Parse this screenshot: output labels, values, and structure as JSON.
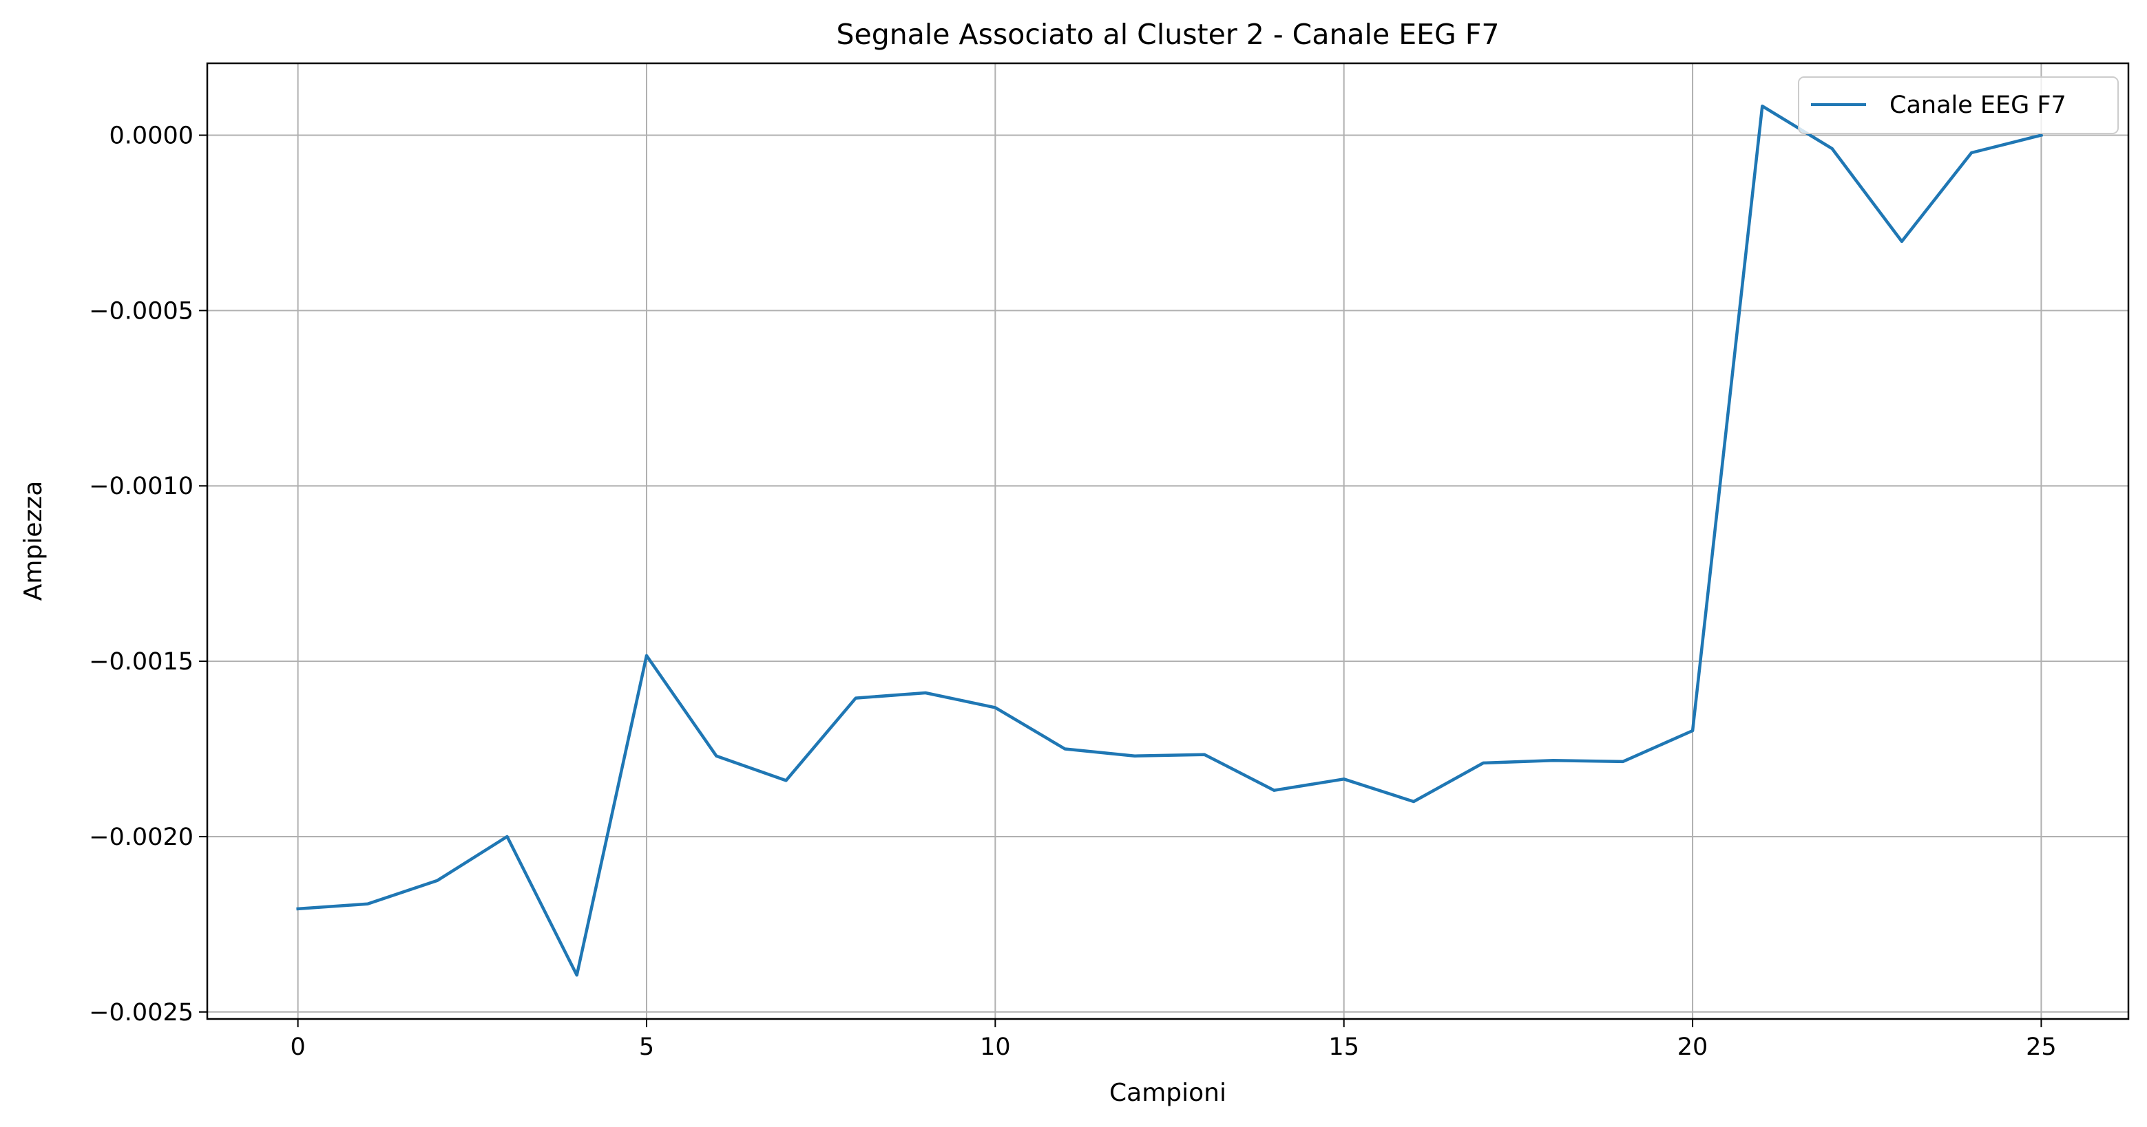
{
  "chart_data": {
    "type": "line",
    "title": "Segnale Associato al Cluster 2 - Canale EEG F7",
    "xlabel": "Campioni",
    "ylabel": "Ampiezza",
    "xlim": [
      -1.3,
      26.25
    ],
    "ylim": [
      -0.00252,
      0.000205
    ],
    "xticks": [
      0,
      5,
      10,
      15,
      20,
      25
    ],
    "xtick_labels": [
      "0",
      "5",
      "10",
      "15",
      "20",
      "25"
    ],
    "yticks": [
      0.0,
      -0.0005,
      -0.001,
      -0.0015,
      -0.002,
      -0.0025
    ],
    "ytick_labels": [
      "0.0000",
      "−0.0005",
      "−0.0010",
      "−0.0015",
      "−0.0020",
      "−0.0025"
    ],
    "grid": true,
    "legend_position": "top-right",
    "series": [
      {
        "name": "Canale EEG F7",
        "color": "#1f77b4",
        "x": [
          0,
          1,
          2,
          3,
          4,
          5,
          6,
          7,
          8,
          9,
          10,
          11,
          12,
          13,
          14,
          15,
          16,
          17,
          18,
          19,
          20,
          21,
          22,
          23,
          24,
          25
        ],
        "y": [
          -0.002206,
          -0.002192,
          -0.002125,
          -0.002,
          -0.002395,
          -0.001484,
          -0.00177,
          -0.00184,
          -0.001605,
          -0.00159,
          -0.001632,
          -0.00175,
          -0.00177,
          -0.001766,
          -0.001868,
          -0.001836,
          -0.0019,
          -0.00179,
          -0.001783,
          -0.001786,
          -0.001698,
          8.3e-05,
          -3.8e-05,
          -0.000303,
          -5e-05,
          0.0
        ]
      }
    ]
  }
}
